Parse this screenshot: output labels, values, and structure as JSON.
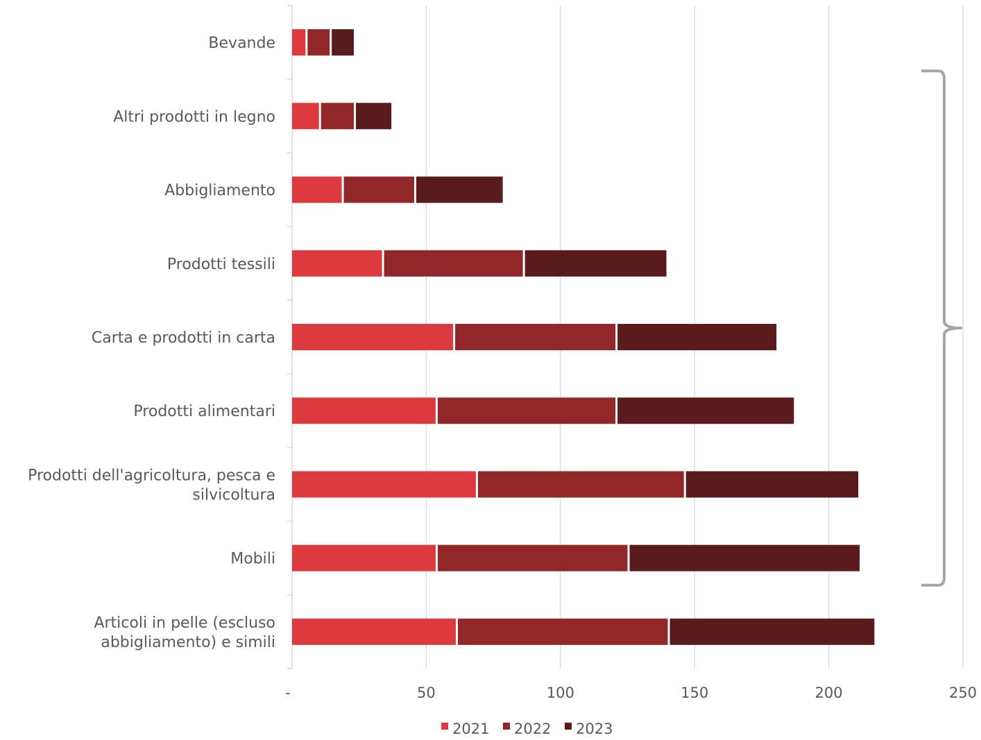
{
  "chart_data": {
    "type": "bar",
    "orientation": "horizontal",
    "stacked": true,
    "categories": [
      [
        "Bevande"
      ],
      [
        "Altri prodotti in legno"
      ],
      [
        "Abbigliamento"
      ],
      [
        "Prodotti tessili"
      ],
      [
        "Carta e prodotti in carta"
      ],
      [
        "Prodotti alimentari"
      ],
      [
        "Prodotti dell'agricoltura, pesca e",
        "silvicoltura"
      ],
      [
        "Mobili"
      ],
      [
        "Articoli in pelle (escluso",
        "abbigliamento) e simili"
      ]
    ],
    "series": [
      {
        "name": "2021",
        "color": "#dc3a3e",
        "values": [
          5,
          10,
          18.5,
          33.5,
          60,
          53.5,
          68.5,
          53.5,
          61
        ]
      },
      {
        "name": "2022",
        "color": "#922729",
        "values": [
          9,
          13,
          27,
          52.5,
          60.5,
          67,
          77.5,
          71.5,
          79
        ]
      },
      {
        "name": "2023",
        "color": "#5a1b1c",
        "values": [
          9,
          14,
          33,
          53.5,
          60,
          66.5,
          65,
          86.5,
          77
        ]
      }
    ],
    "xlim": [
      0,
      250
    ],
    "x_ticks": [
      "-",
      "50",
      "100",
      "150",
      "200",
      "250"
    ],
    "grid": true,
    "legend_position": "bottom",
    "annotation": "bracket"
  }
}
